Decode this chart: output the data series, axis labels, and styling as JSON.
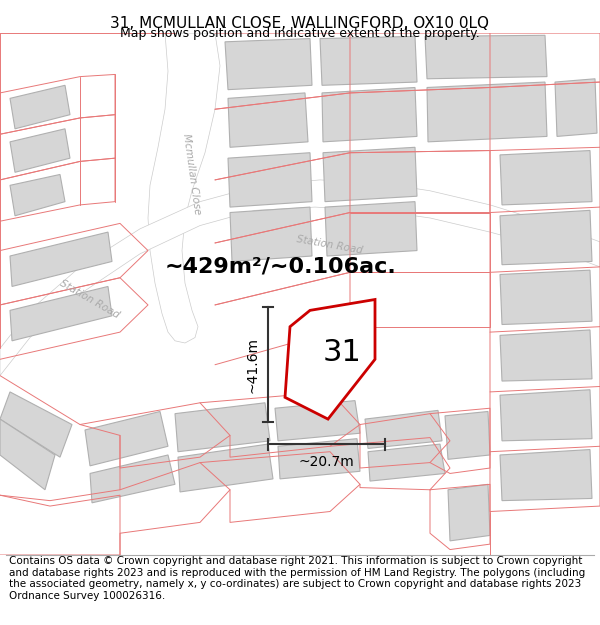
{
  "title": "31, MCMULLAN CLOSE, WALLINGFORD, OX10 0LQ",
  "subtitle": "Map shows position and indicative extent of the property.",
  "footer": "Contains OS data © Crown copyright and database right 2021. This information is subject to Crown copyright and database rights 2023 and is reproduced with the permission of HM Land Registry. The polygons (including the associated geometry, namely x, y co-ordinates) are subject to Crown copyright and database rights 2023 Ordnance Survey 100026316.",
  "area_label": "~429m²/~0.106ac.",
  "dim_width": "~20.7m",
  "dim_height": "~41.6m",
  "number_label": "31",
  "map_bg": "#f2f2f2",
  "building_fill": "#d6d6d6",
  "building_edge": "#b0b0b0",
  "road_fill": "#ffffff",
  "red_line": "#e87878",
  "main_plot_edge": "#cc0000",
  "dim_line_color": "#333333",
  "street_label_color": "#aaaaaa",
  "title_fontsize": 11,
  "subtitle_fontsize": 9,
  "footer_fontsize": 7.5,
  "area_label_fontsize": 16,
  "number_label_fontsize": 22,
  "dim_fontsize": 10
}
